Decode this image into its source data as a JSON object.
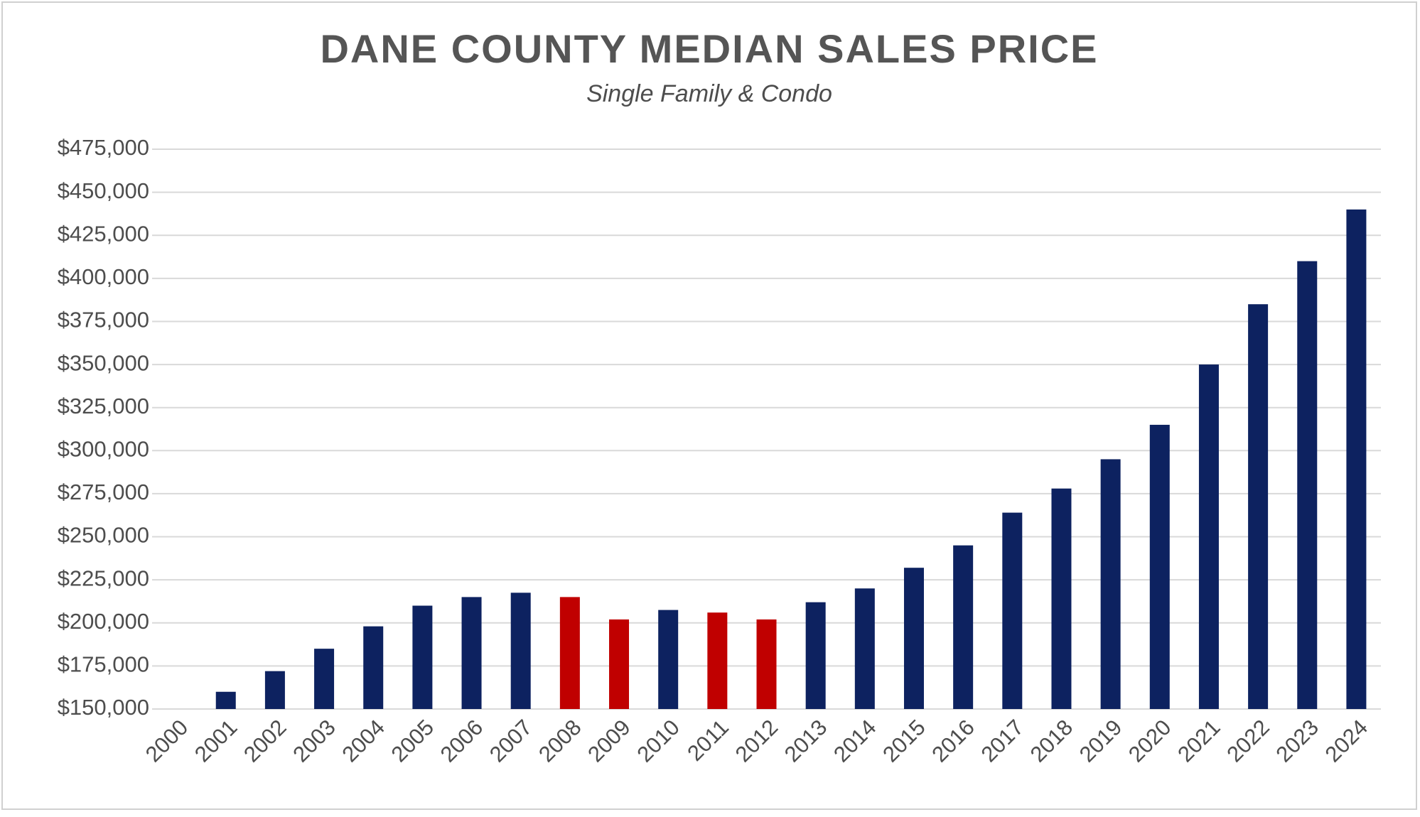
{
  "chart_data": {
    "type": "bar",
    "title": "DANE COUNTY MEDIAN SALES PRICE",
    "subtitle": "Single Family & Condo",
    "categories": [
      "2000",
      "2001",
      "2002",
      "2003",
      "2004",
      "2005",
      "2006",
      "2007",
      "2008",
      "2009",
      "2010",
      "2011",
      "2012",
      "2013",
      "2014",
      "2015",
      "2016",
      "2017",
      "2018",
      "2019",
      "2020",
      "2021",
      "2022",
      "2023",
      "2024"
    ],
    "values": [
      150000,
      160000,
      172000,
      185000,
      198000,
      210000,
      215000,
      217500,
      215000,
      202000,
      207500,
      206000,
      202000,
      212000,
      220000,
      232000,
      245000,
      264000,
      278000,
      295000,
      315000,
      350000,
      385000,
      410000,
      440000
    ],
    "colors": [
      "#0d2260",
      "#0d2260",
      "#0d2260",
      "#0d2260",
      "#0d2260",
      "#0d2260",
      "#0d2260",
      "#0d2260",
      "#c00000",
      "#c00000",
      "#0d2260",
      "#c00000",
      "#c00000",
      "#0d2260",
      "#0d2260",
      "#0d2260",
      "#0d2260",
      "#0d2260",
      "#0d2260",
      "#0d2260",
      "#0d2260",
      "#0d2260",
      "#0d2260",
      "#0d2260",
      "#0d2260"
    ],
    "ylim": [
      150000,
      475000
    ],
    "yticks": [
      {
        "value": 150000,
        "label": "$150,000"
      },
      {
        "value": 175000,
        "label": "$175,000"
      },
      {
        "value": 200000,
        "label": "$200,000"
      },
      {
        "value": 225000,
        "label": "$225,000"
      },
      {
        "value": 250000,
        "label": "$250,000"
      },
      {
        "value": 275000,
        "label": "$275,000"
      },
      {
        "value": 300000,
        "label": "$300,000"
      },
      {
        "value": 325000,
        "label": "$325,000"
      },
      {
        "value": 350000,
        "label": "$350,000"
      },
      {
        "value": 375000,
        "label": "$375,000"
      },
      {
        "value": 400000,
        "label": "$400,000"
      },
      {
        "value": 425000,
        "label": "$425,000"
      },
      {
        "value": 450000,
        "label": "$450,000"
      },
      {
        "value": 475000,
        "label": "$475,000"
      }
    ],
    "grid": true
  }
}
